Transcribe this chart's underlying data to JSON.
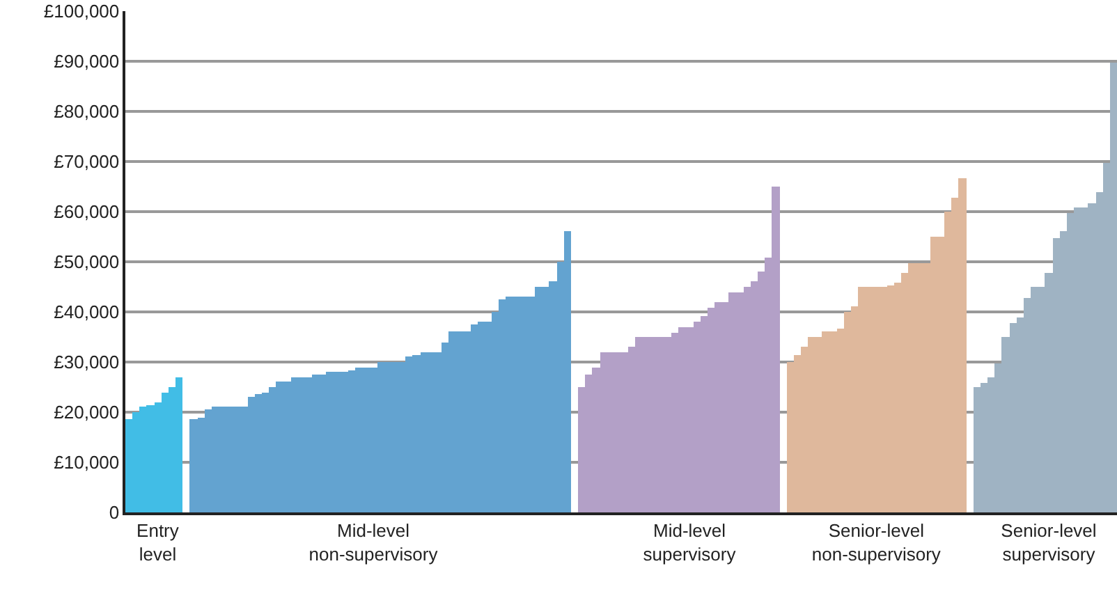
{
  "chart_data": {
    "type": "bar",
    "categories": [
      null,
      null,
      null,
      null,
      "Entry\nlevel",
      null,
      null,
      null,
      null,
      null,
      null,
      null,
      null,
      null,
      null,
      null,
      null,
      null,
      null,
      null,
      null,
      null,
      null,
      null,
      null,
      null,
      null,
      null,
      null,
      null,
      null,
      null,
      null,
      null,
      "Mid-level\nnon-supervisory",
      null,
      null,
      null,
      null,
      null,
      null,
      null,
      null,
      null,
      null,
      null,
      null,
      null,
      null,
      null,
      null,
      null,
      null,
      null,
      null,
      null,
      null,
      null,
      null,
      null,
      null,
      null,
      null,
      null,
      null,
      null,
      null,
      null,
      null,
      null,
      null,
      null,
      null,
      null,
      null,
      null,
      null,
      null,
      "Mid-level\nsupervisory",
      null,
      null,
      null,
      null,
      null,
      null,
      null,
      null,
      null,
      null,
      null,
      null,
      null,
      null,
      null,
      null,
      null,
      null,
      null,
      null,
      null,
      null,
      null,
      null,
      null,
      "Senior-level\nnon-supervisory",
      null,
      null,
      null,
      null,
      null,
      null,
      null,
      null,
      null,
      null,
      null,
      null,
      null,
      null,
      null,
      null,
      null,
      null,
      null,
      null,
      null,
      null,
      null,
      "Senior-level\nsupervisory",
      null,
      null,
      null,
      null,
      null,
      null,
      null,
      null,
      null
    ],
    "values": [
      18700,
      20000,
      21000,
      21500,
      22000,
      23800,
      25000,
      26900,
      null,
      18600,
      19000,
      20600,
      21000,
      21000,
      21000,
      21000,
      21000,
      23100,
      23600,
      23900,
      24900,
      26000,
      26000,
      26900,
      26900,
      26900,
      27500,
      27500,
      28100,
      28100,
      28100,
      28200,
      28800,
      28800,
      28800,
      30100,
      30100,
      30100,
      30100,
      31000,
      31400,
      31900,
      31900,
      31900,
      33900,
      36000,
      36000,
      36000,
      37400,
      38100,
      38100,
      40000,
      42400,
      43000,
      43000,
      43000,
      43000,
      44900,
      44900,
      46000,
      49900,
      56000,
      null,
      25000,
      27600,
      29000,
      31900,
      31900,
      31900,
      31900,
      33000,
      34900,
      34900,
      34900,
      34900,
      34900,
      35900,
      36900,
      36900,
      38000,
      39100,
      40900,
      41900,
      41900,
      43900,
      43900,
      44900,
      46000,
      48000,
      50900,
      64900,
      null,
      30000,
      31400,
      33000,
      34900,
      34900,
      36000,
      36000,
      36800,
      40000,
      41000,
      44900,
      44900,
      44900,
      44900,
      45400,
      45900,
      47800,
      49800,
      49800,
      49800,
      54900,
      54900,
      59900,
      62900,
      66800,
      null,
      24900,
      25800,
      26900,
      29800,
      34900,
      37900,
      38900,
      42900,
      44900,
      44900,
      47800,
      54800,
      56200,
      59700,
      60700,
      60700,
      61800,
      63900,
      69700,
      89700
    ],
    "colors": [
      "#41bde6",
      "#41bde6",
      "#41bde6",
      "#41bde6",
      "#41bde6",
      "#41bde6",
      "#41bde6",
      "#41bde6",
      null,
      "#63a3d0",
      "#63a3d0",
      "#63a3d0",
      "#63a3d0",
      "#63a3d0",
      "#63a3d0",
      "#63a3d0",
      "#63a3d0",
      "#63a3d0",
      "#63a3d0",
      "#63a3d0",
      "#63a3d0",
      "#63a3d0",
      "#63a3d0",
      "#63a3d0",
      "#63a3d0",
      "#63a3d0",
      "#63a3d0",
      "#63a3d0",
      "#63a3d0",
      "#63a3d0",
      "#63a3d0",
      "#63a3d0",
      "#63a3d0",
      "#63a3d0",
      "#63a3d0",
      "#63a3d0",
      "#63a3d0",
      "#63a3d0",
      "#63a3d0",
      "#63a3d0",
      "#63a3d0",
      "#63a3d0",
      "#63a3d0",
      "#63a3d0",
      "#63a3d0",
      "#63a3d0",
      "#63a3d0",
      "#63a3d0",
      "#63a3d0",
      "#63a3d0",
      "#63a3d0",
      "#63a3d0",
      "#63a3d0",
      "#63a3d0",
      "#63a3d0",
      "#63a3d0",
      "#63a3d0",
      "#63a3d0",
      "#63a3d0",
      "#63a3d0",
      "#63a3d0",
      "#63a3d0",
      null,
      "#b3a0c7",
      "#b3a0c7",
      "#b3a0c7",
      "#b3a0c7",
      "#b3a0c7",
      "#b3a0c7",
      "#b3a0c7",
      "#b3a0c7",
      "#b3a0c7",
      "#b3a0c7",
      "#b3a0c7",
      "#b3a0c7",
      "#b3a0c7",
      "#b3a0c7",
      "#b3a0c7",
      "#b3a0c7",
      "#b3a0c7",
      "#b3a0c7",
      "#b3a0c7",
      "#b3a0c7",
      "#b3a0c7",
      "#b3a0c7",
      "#b3a0c7",
      "#b3a0c7",
      "#b3a0c7",
      "#b3a0c7",
      "#b3a0c7",
      "#b3a0c7",
      null,
      "#dfb89c",
      "#dfb89c",
      "#dfb89c",
      "#dfb89c",
      "#dfb89c",
      "#dfb89c",
      "#dfb89c",
      "#dfb89c",
      "#dfb89c",
      "#dfb89c",
      "#dfb89c",
      "#dfb89c",
      "#dfb89c",
      "#dfb89c",
      "#dfb89c",
      "#dfb89c",
      "#dfb89c",
      "#dfb89c",
      "#dfb89c",
      "#dfb89c",
      "#dfb89c",
      "#dfb89c",
      "#dfb89c",
      "#dfb89c",
      "#dfb89c",
      null,
      "#9fb3c3",
      "#9fb3c3",
      "#9fb3c3",
      "#9fb3c3",
      "#9fb3c3",
      "#9fb3c3",
      "#9fb3c3",
      "#9fb3c3",
      "#9fb3c3",
      "#9fb3c3",
      "#9fb3c3",
      "#9fb3c3",
      "#9fb3c3",
      "#9fb3c3",
      "#9fb3c3",
      "#9fb3c3",
      "#9fb3c3",
      "#9fb3c3",
      "#9fb3c3",
      "#9fb3c3"
    ],
    "ylim": [
      0,
      100000
    ],
    "yticks": [
      0,
      {
        "value": 10000,
        "label": "£10,000"
      },
      {
        "value": 20000,
        "label": "£20,000"
      },
      {
        "value": 30000,
        "label": "£30,000"
      },
      {
        "value": 40000,
        "label": "£40,000"
      },
      {
        "value": 50000,
        "label": "£50,000"
      },
      {
        "value": 60000,
        "label": "£60,000"
      },
      {
        "value": 70000,
        "label": "£70,000"
      },
      {
        "value": 80000,
        "label": "£80,000"
      },
      {
        "value": 90000,
        "label": "£90,000"
      },
      {
        "value": 100000,
        "label": "£100,000"
      }
    ],
    "grid": "y"
  }
}
